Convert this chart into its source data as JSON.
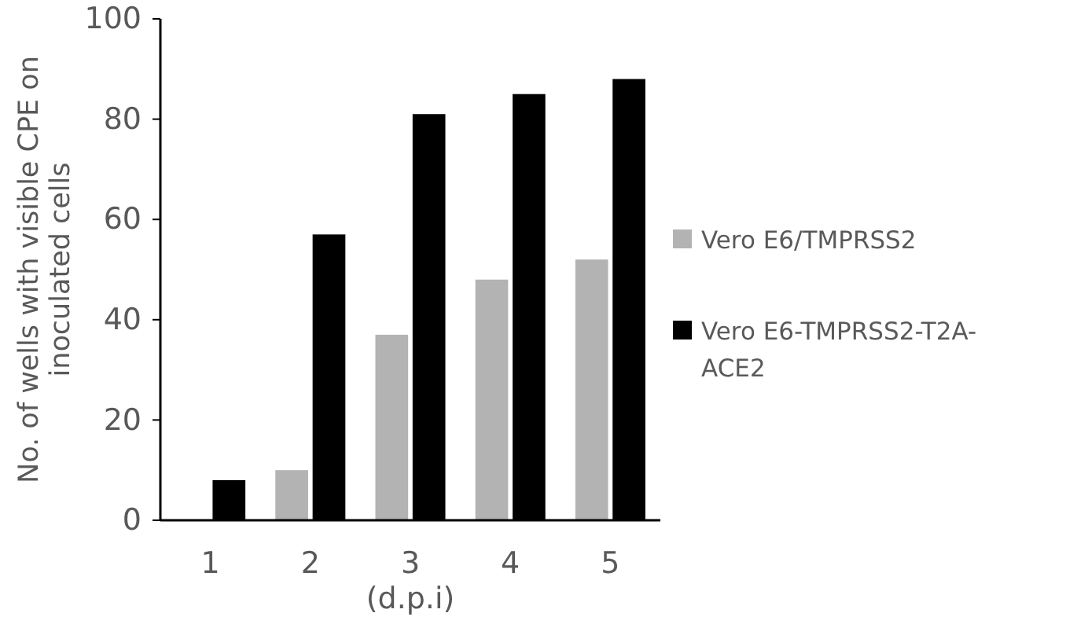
{
  "chart_data": {
    "type": "bar",
    "xlabel": "(d.p.i)",
    "ylabel": "No. of wells with visible CPE on inoculated cells",
    "categories": [
      "1",
      "2",
      "3",
      "4",
      "5"
    ],
    "series": [
      {
        "name": "Vero E6/TMPRSS2",
        "color": "#b3b3b3",
        "values": [
          0,
          10,
          37,
          48,
          52
        ]
      },
      {
        "name": "Vero E6-TMPRSS2-T2A-ACE2",
        "color": "#000000",
        "values": [
          8,
          57,
          81,
          85,
          88
        ]
      }
    ],
    "ylim": [
      0,
      100
    ],
    "yticks": [
      0,
      20,
      40,
      60,
      80,
      100
    ],
    "grid": false,
    "legend": "right"
  }
}
